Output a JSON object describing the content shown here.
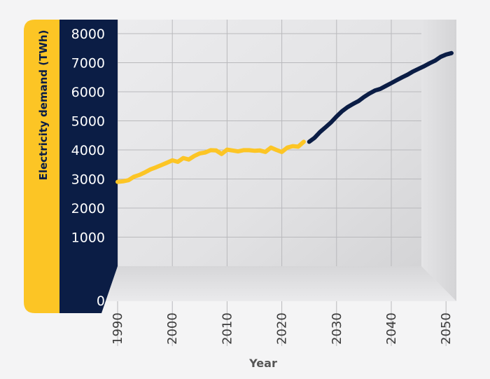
{
  "chart_data": {
    "type": "line",
    "xlabel": "Year",
    "ylabel": "Electricity demand (TWh)",
    "xlim": [
      1990,
      2051
    ],
    "ylim": [
      0,
      8000
    ],
    "x_ticks": [
      "1990",
      "2000",
      "2010",
      "2020",
      "2030",
      "2040",
      "2050"
    ],
    "y_ticks": [
      "0",
      "1000",
      "2000",
      "3000",
      "4000",
      "5000",
      "6000",
      "7000",
      "8000"
    ],
    "grid": true,
    "series": [
      {
        "color": "#fcc525",
        "x": [
          1990,
          1991,
          1992,
          1993,
          1994,
          1995,
          1996,
          1997,
          1998,
          1999,
          2000,
          2001,
          2002,
          2003,
          2004,
          2005,
          2006,
          2007,
          2008,
          2009,
          2010,
          2011,
          2012,
          2013,
          2014,
          2015,
          2016,
          2017,
          2018,
          2019,
          2020,
          2021,
          2022,
          2023,
          2024
        ],
        "values": [
          2900,
          2920,
          2960,
          3080,
          3140,
          3230,
          3330,
          3400,
          3480,
          3560,
          3640,
          3590,
          3720,
          3670,
          3790,
          3880,
          3910,
          3990,
          3980,
          3860,
          4010,
          3980,
          3950,
          3990,
          3990,
          3970,
          3980,
          3930,
          4080,
          4000,
          3930,
          4080,
          4130,
          4110,
          4280
        ]
      },
      {
        "color": "#0b1d45",
        "x": [
          2025,
          2026,
          2027,
          2028,
          2029,
          2030,
          2031,
          2032,
          2033,
          2034,
          2035,
          2036,
          2037,
          2038,
          2039,
          2040,
          2041,
          2042,
          2043,
          2044,
          2045,
          2046,
          2047,
          2048,
          2049,
          2050,
          2051
        ],
        "values": [
          4280,
          4420,
          4620,
          4780,
          4950,
          5150,
          5330,
          5470,
          5580,
          5680,
          5820,
          5940,
          6040,
          6100,
          6200,
          6300,
          6400,
          6500,
          6590,
          6700,
          6790,
          6880,
          6980,
          7070,
          7200,
          7280,
          7330
        ]
      }
    ]
  },
  "colors": {
    "historic": "#fcc525",
    "projected": "#0b1d45",
    "axis_panel": "#0b1d45",
    "label_panel": "#fcc525"
  }
}
